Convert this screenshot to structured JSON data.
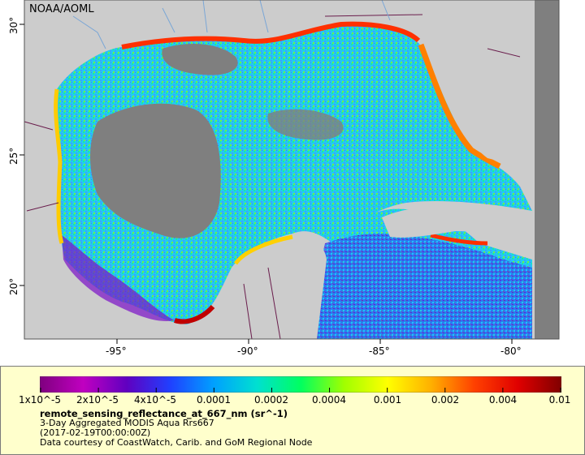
{
  "map": {
    "credit": "NOAA/AOML",
    "lon_ticks": [
      "-95°",
      "-90°",
      "-85°",
      "-80°"
    ],
    "lat_ticks": [
      "30°",
      "25°",
      "20°"
    ],
    "land_color": "#cccccc",
    "nodata_color": "#7f7f7f",
    "border_color": "#6a1d4c",
    "river_color": "#7aa6d6",
    "water_ramp": [
      "#6a00a8",
      "#2050e0",
      "#00c8ff",
      "#18e8a0",
      "#7fff00",
      "#ffd000",
      "#ff3000",
      "#a00000"
    ]
  },
  "legend": {
    "colorbar_labels": [
      "1x10^-5",
      "2x10^-5",
      "4x10^-5",
      "0.0001",
      "0.0002",
      "0.0004",
      "0.001",
      "0.002",
      "0.004",
      "0.01"
    ],
    "colorbar_colors": [
      "#7f007f",
      "#c000c0",
      "#6000c0",
      "#2040ff",
      "#00a0ff",
      "#00e0d0",
      "#00ff60",
      "#a0ff00",
      "#ffff00",
      "#ffb000",
      "#ff4000",
      "#e00000",
      "#800000"
    ],
    "variable": "remote_sensing_reflectance_at_667_nm (sr^-1)",
    "product": "3-Day Aggregated MODIS Aqua Rrs667",
    "time": "(2017-02-19T00:00:00Z)",
    "attribution": "Data courtesy of CoastWatch, Carib. and GoM Regional Node"
  }
}
